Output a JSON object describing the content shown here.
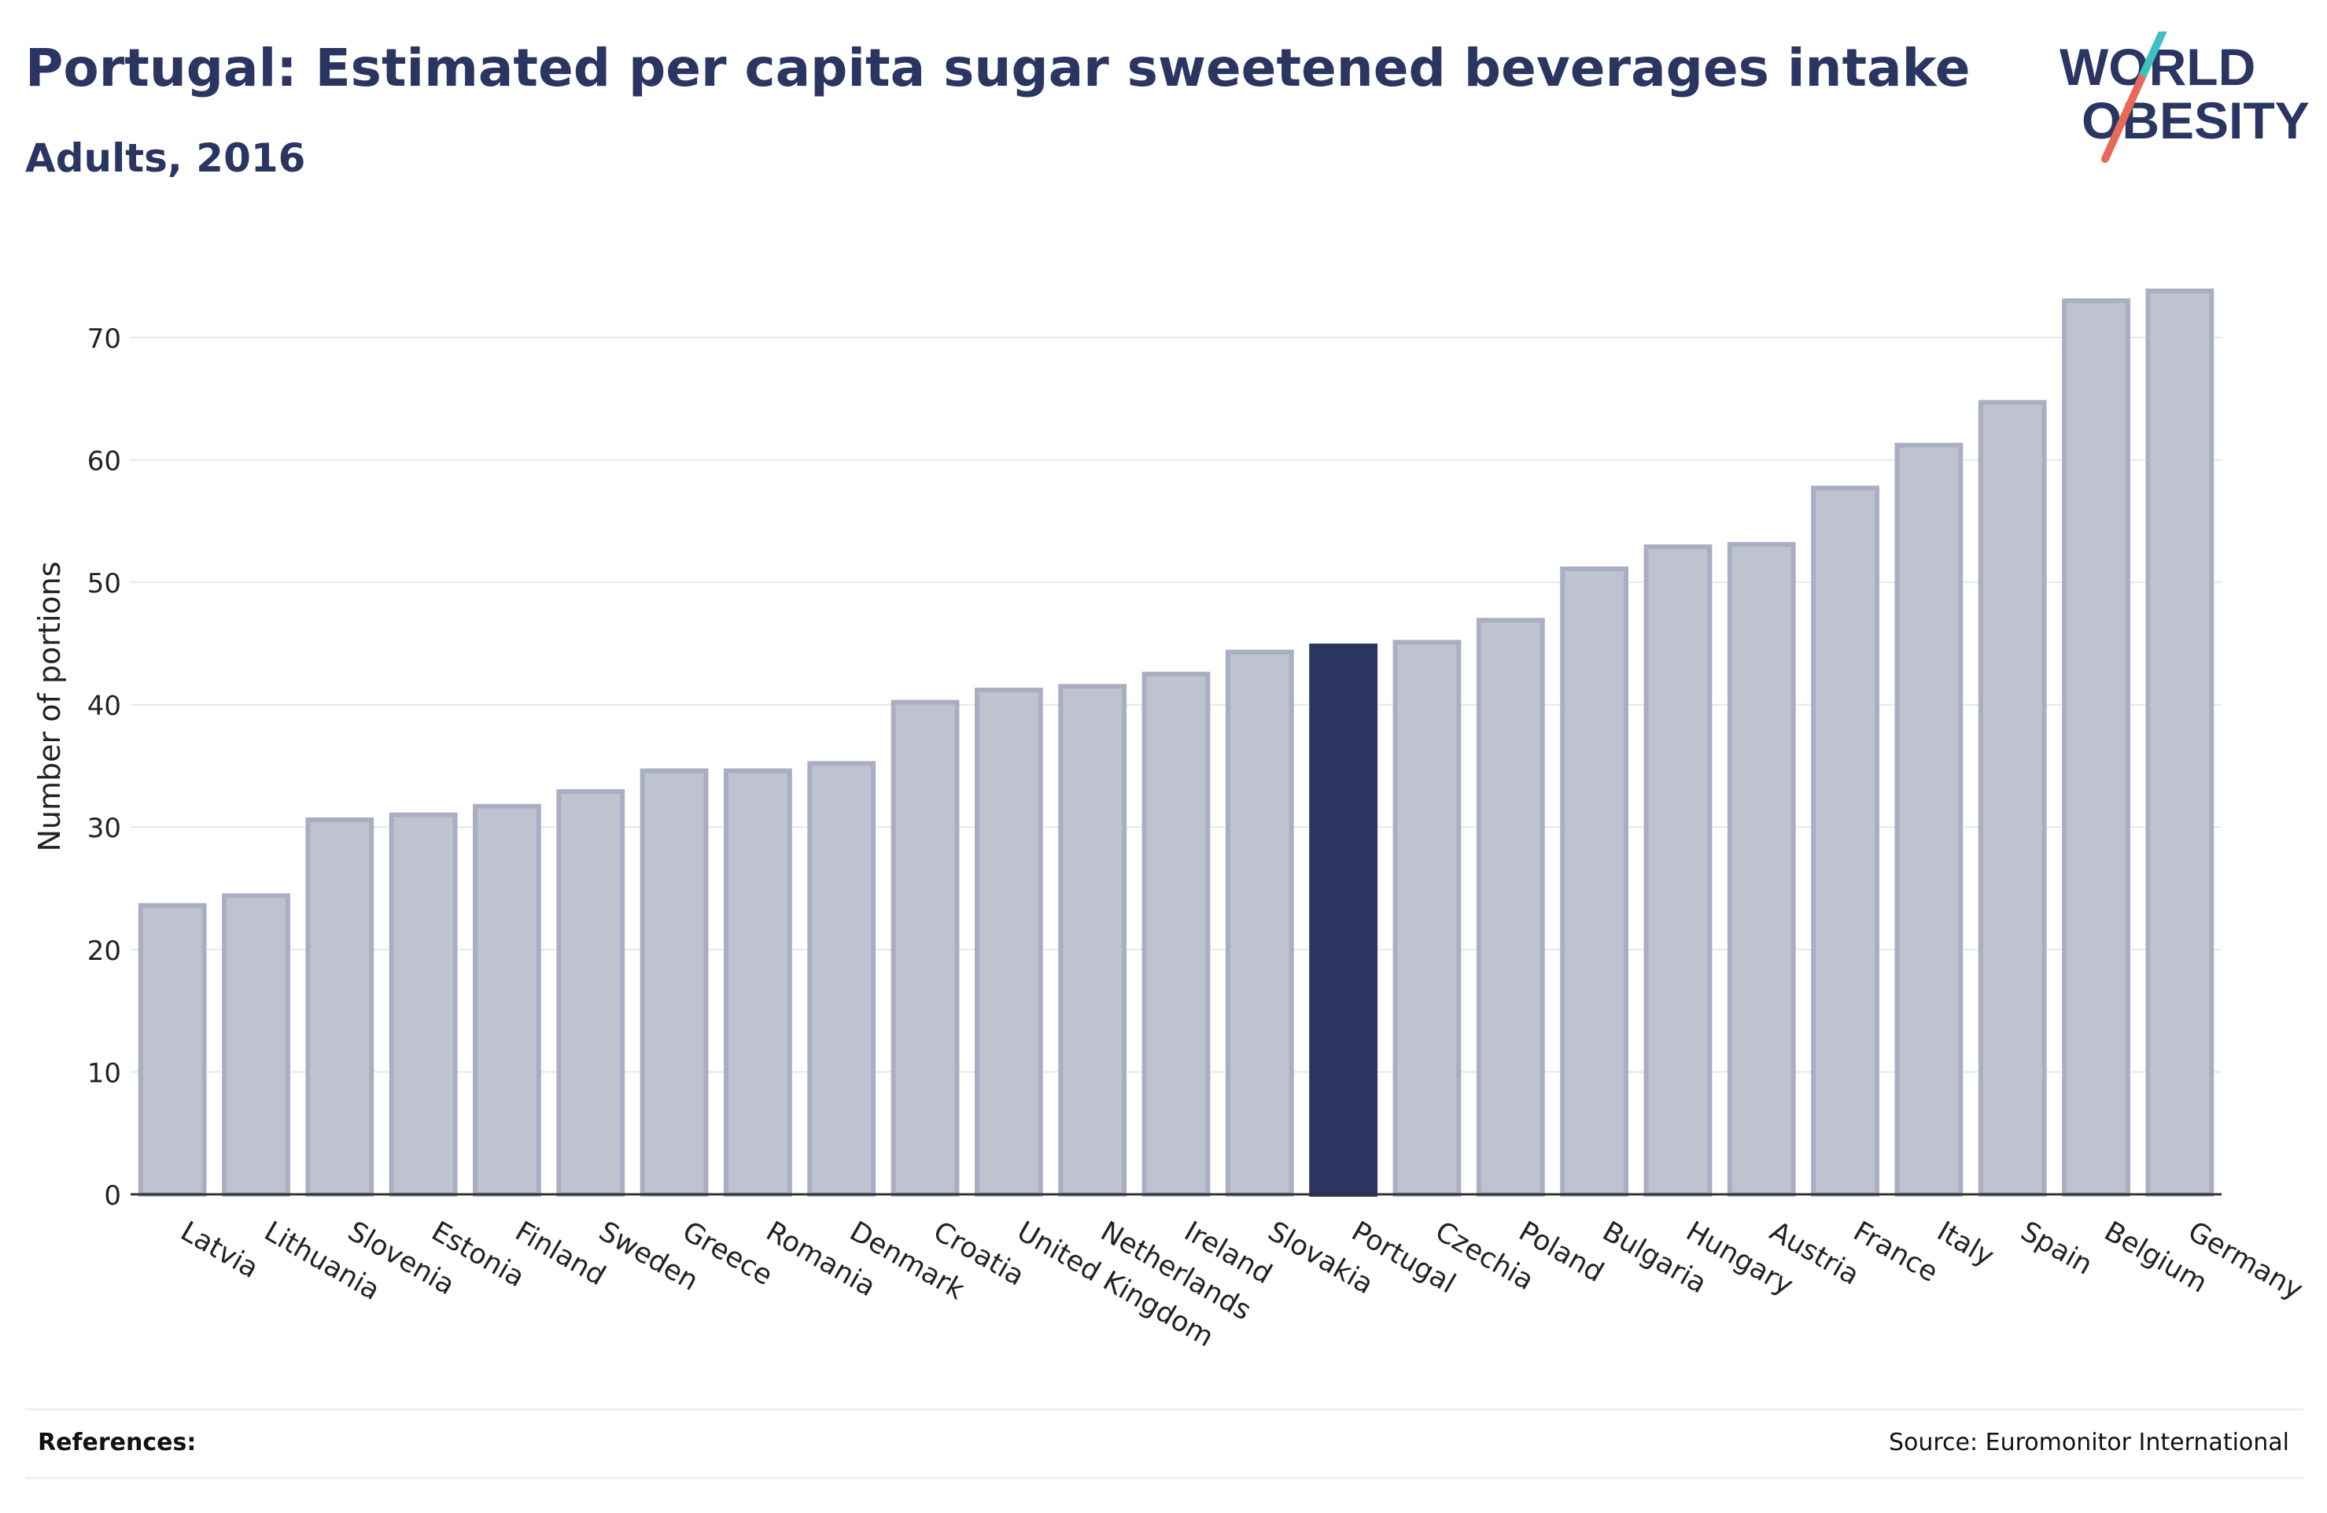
{
  "header": {
    "title": "Portugal: Estimated per capita sugar sweetened beverages intake",
    "subtitle": "Adults, 2016"
  },
  "logo": {
    "line1": "WORLD",
    "line2": "OBESITY",
    "color": "#2a3562",
    "accent_teal": "#3fbfc0",
    "accent_coral": "#e8695a"
  },
  "footer": {
    "references_label": "References:",
    "source": "Source: Euromonitor International"
  },
  "colors": {
    "bar_fill": "#bfc3d0",
    "bar_stroke": "#a9aec2",
    "highlight_fill": "#2a3562",
    "axis": "#333333",
    "grid": "#e6e8ec",
    "text": "#222222"
  },
  "chart_data": {
    "type": "bar",
    "title": "Portugal: Estimated per capita sugar sweetened beverages intake",
    "subtitle": "Adults, 2016",
    "xlabel": "",
    "ylabel": "Number of portions",
    "ylim": [
      0,
      77
    ],
    "yticks": [
      0,
      10,
      20,
      30,
      40,
      50,
      60,
      70
    ],
    "grid": true,
    "highlight": "Portugal",
    "categories": [
      "Latvia",
      "Lithuania",
      "Slovenia",
      "Estonia",
      "Finland",
      "Sweden",
      "Greece",
      "Romania",
      "Denmark",
      "Croatia",
      "United Kingdom",
      "Netherlands",
      "Ireland",
      "Slovakia",
      "Portugal",
      "Czechia",
      "Poland",
      "Bulgaria",
      "Hungary",
      "Austria",
      "France",
      "Italy",
      "Spain",
      "Belgium",
      "Germany"
    ],
    "values": [
      23.6,
      24.4,
      30.6,
      31.0,
      31.7,
      32.9,
      34.6,
      34.6,
      35.2,
      40.2,
      41.2,
      41.5,
      42.5,
      44.3,
      44.8,
      45.1,
      46.9,
      51.1,
      52.9,
      53.1,
      57.7,
      61.2,
      64.7,
      73.0,
      73.8
    ]
  }
}
